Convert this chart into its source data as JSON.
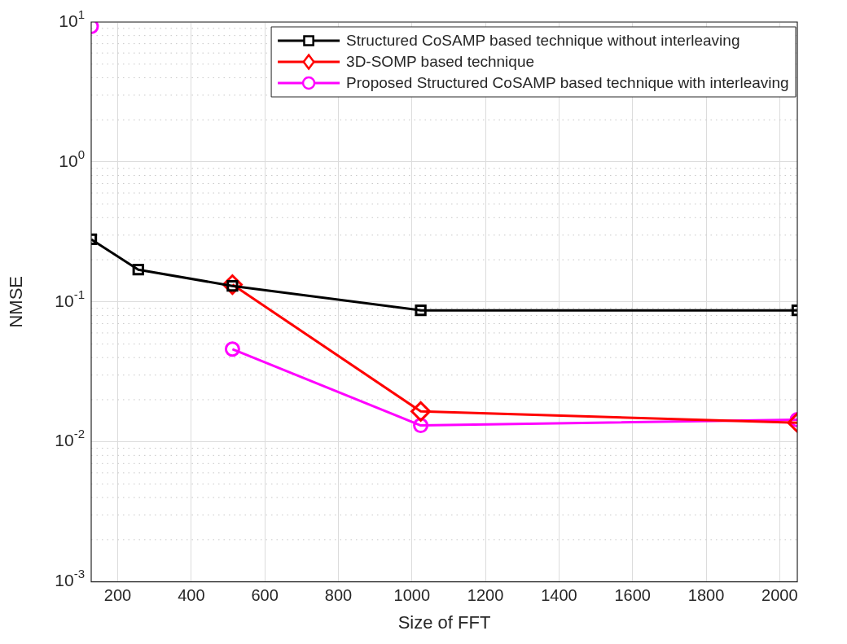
{
  "chart_data": {
    "type": "line",
    "xlabel": "Size of FFT",
    "ylabel": "NMSE",
    "x": [
      128,
      256,
      512,
      1024,
      2048
    ],
    "series": [
      {
        "name": "Structured CoSAMP based technique without interleaving",
        "color": "#000000",
        "marker": "square",
        "values": [
          0.28,
          0.17,
          0.13,
          0.087,
          0.087
        ]
      },
      {
        "name": "3D-SOMP based technique",
        "color": "#ff0000",
        "marker": "diamond",
        "values": [
          null,
          null,
          0.133,
          0.0165,
          0.0137
        ]
      },
      {
        "name": "Proposed Structured CoSAMP based technique with interleaving",
        "color": "#ff00ff",
        "marker": "circle",
        "values": [
          9.3,
          null,
          0.046,
          0.0131,
          0.0144
        ]
      }
    ],
    "log": "y",
    "xlim": [
      128,
      2048
    ],
    "ylim": [
      0.001,
      10
    ],
    "xticks": [
      200,
      400,
      600,
      800,
      1000,
      1200,
      1400,
      1600,
      1800,
      2000
    ],
    "yticks": [
      {
        "value": 0.001,
        "label": "10$^{-3}$"
      },
      {
        "value": 0.01,
        "label": "10$^{-2}$"
      },
      {
        "value": 0.1,
        "label": "10$^{-1}$"
      },
      {
        "value": 1,
        "label": "10$^{0}$"
      },
      {
        "value": 10,
        "label": "10$^{1}$"
      }
    ],
    "grid": true,
    "legend": "top right",
    "line_style": "solid"
  }
}
